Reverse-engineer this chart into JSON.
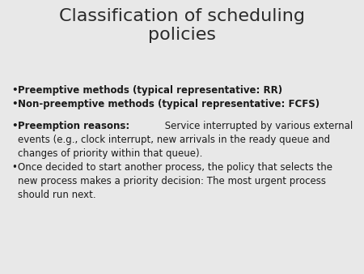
{
  "title": "Classification of scheduling\npolicies",
  "title_fontsize": 16,
  "title_color": "#2a2a2a",
  "bg_color": "#e8e8e8",
  "bullet1": "Preemptive methods (typical representative: RR)",
  "bullet2": "Non-preemptive methods (typical representative: FCFS)",
  "bullet3_bold": "Preemption reasons:",
  "bullet3_rest": " Service interrupted by various external\nevents (e.g., clock interrupt, new arrivals in the ready queue and\nchanges of priority within that queue).",
  "bullet4": "Once decided to start another process, the policy that selects the\nnew process makes a priority decision: The most urgent process\nshould run next.",
  "body_fontsize": 8.5,
  "text_color": "#1a1a1a"
}
